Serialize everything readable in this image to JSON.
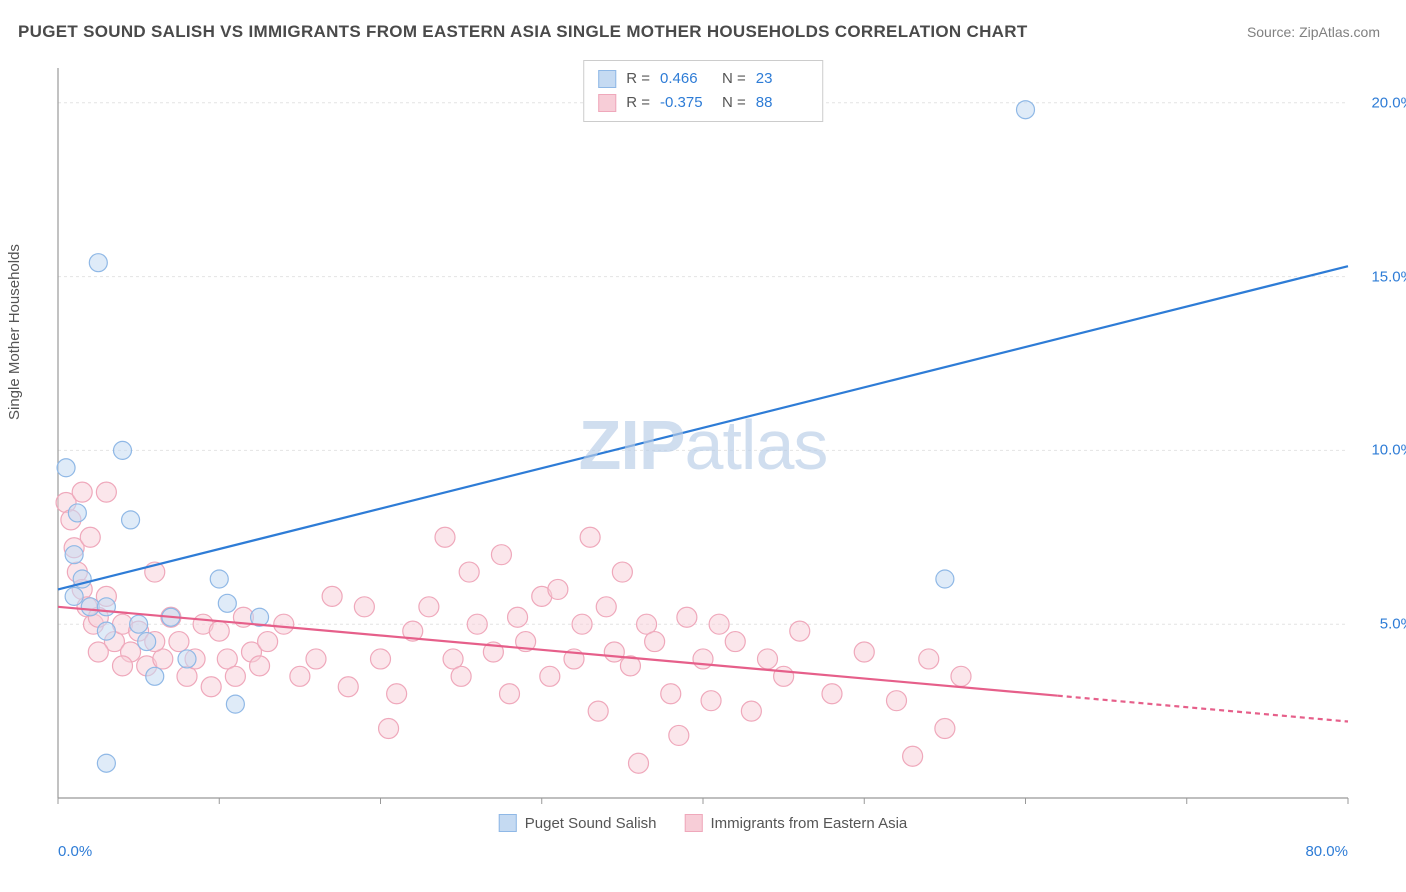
{
  "title": "PUGET SOUND SALISH VS IMMIGRANTS FROM EASTERN ASIA SINGLE MOTHER HOUSEHOLDS CORRELATION CHART",
  "source": "Source: ZipAtlas.com",
  "ylabel": "Single Mother Households",
  "watermark": {
    "bold": "ZIP",
    "light": "atlas"
  },
  "chart": {
    "type": "scatter",
    "background_color": "#ffffff",
    "grid_color": "#e4e4e4",
    "axis_line_color": "#999999",
    "xlim": [
      0,
      80
    ],
    "ylim": [
      0,
      21
    ],
    "xticks": [
      0,
      10,
      20,
      30,
      40,
      50,
      60,
      70,
      80
    ],
    "xtick_labels": {
      "0": "0.0%",
      "80": "80.0%"
    },
    "yticks": [
      5,
      10,
      15,
      20
    ],
    "ytick_labels": {
      "5": "5.0%",
      "10": "10.0%",
      "15": "15.0%",
      "20": "20.0%"
    },
    "label_color": "#2e7cd6",
    "label_fontsize": 15,
    "series": [
      {
        "name": "Puget Sound Salish",
        "color_fill": "#c5daf2",
        "color_stroke": "#8fb8e6",
        "line_color": "#2e7cd6",
        "marker_radius": 9,
        "fill_opacity": 0.55,
        "line_width": 2.2,
        "R": "0.466",
        "N": "23",
        "trend": {
          "x1": 0,
          "y1": 6.0,
          "x2": 80,
          "y2": 15.3
        },
        "trend_solid_to_x": 80,
        "points": [
          [
            0.5,
            9.5
          ],
          [
            1.0,
            7.0
          ],
          [
            1.2,
            8.2
          ],
          [
            1.5,
            6.3
          ],
          [
            2.0,
            5.5
          ],
          [
            2.5,
            15.4
          ],
          [
            3.0,
            4.8
          ],
          [
            3.0,
            5.5
          ],
          [
            3.0,
            1.0
          ],
          [
            4.0,
            10.0
          ],
          [
            4.5,
            8.0
          ],
          [
            5.0,
            5.0
          ],
          [
            5.5,
            4.5
          ],
          [
            6.0,
            3.5
          ],
          [
            7.0,
            5.2
          ],
          [
            8.0,
            4.0
          ],
          [
            10.0,
            6.3
          ],
          [
            10.5,
            5.6
          ],
          [
            11.0,
            2.7
          ],
          [
            12.5,
            5.2
          ],
          [
            55.0,
            6.3
          ],
          [
            60.0,
            19.8
          ],
          [
            1.0,
            5.8
          ]
        ]
      },
      {
        "name": "Immigrants from Eastern Asia",
        "color_fill": "#f7cdd7",
        "color_stroke": "#efa8bb",
        "line_color": "#e65f8a",
        "marker_radius": 10,
        "fill_opacity": 0.5,
        "line_width": 2.2,
        "R": "-0.375",
        "N": "88",
        "trend": {
          "x1": 0,
          "y1": 5.5,
          "x2": 80,
          "y2": 2.2
        },
        "trend_solid_to_x": 62,
        "points": [
          [
            0.5,
            8.5
          ],
          [
            0.8,
            8.0
          ],
          [
            1.0,
            7.2
          ],
          [
            1.2,
            6.5
          ],
          [
            1.5,
            6.0
          ],
          [
            1.8,
            5.5
          ],
          [
            2.0,
            7.5
          ],
          [
            2.2,
            5.0
          ],
          [
            2.5,
            5.2
          ],
          [
            3.0,
            5.8
          ],
          [
            3.5,
            4.5
          ],
          [
            4.0,
            5.0
          ],
          [
            4.5,
            4.2
          ],
          [
            5.0,
            4.8
          ],
          [
            5.5,
            3.8
          ],
          [
            6.0,
            6.5
          ],
          [
            6.5,
            4.0
          ],
          [
            7.0,
            5.2
          ],
          [
            7.5,
            4.5
          ],
          [
            8.0,
            3.5
          ],
          [
            8.5,
            4.0
          ],
          [
            9.0,
            5.0
          ],
          [
            9.5,
            3.2
          ],
          [
            10.0,
            4.8
          ],
          [
            10.5,
            4.0
          ],
          [
            11.0,
            3.5
          ],
          [
            11.5,
            5.2
          ],
          [
            12.0,
            4.2
          ],
          [
            12.5,
            3.8
          ],
          [
            13.0,
            4.5
          ],
          [
            14.0,
            5.0
          ],
          [
            15.0,
            3.5
          ],
          [
            16.0,
            4.0
          ],
          [
            17.0,
            5.8
          ],
          [
            18.0,
            3.2
          ],
          [
            19.0,
            5.5
          ],
          [
            20.0,
            4.0
          ],
          [
            20.5,
            2.0
          ],
          [
            21.0,
            3.0
          ],
          [
            22.0,
            4.8
          ],
          [
            23.0,
            5.5
          ],
          [
            24.0,
            7.5
          ],
          [
            24.5,
            4.0
          ],
          [
            25.0,
            3.5
          ],
          [
            25.5,
            6.5
          ],
          [
            26.0,
            5.0
          ],
          [
            27.0,
            4.2
          ],
          [
            27.5,
            7.0
          ],
          [
            28.0,
            3.0
          ],
          [
            28.5,
            5.2
          ],
          [
            29.0,
            4.5
          ],
          [
            30.0,
            5.8
          ],
          [
            30.5,
            3.5
          ],
          [
            31.0,
            6.0
          ],
          [
            32.0,
            4.0
          ],
          [
            32.5,
            5.0
          ],
          [
            33.0,
            7.5
          ],
          [
            33.5,
            2.5
          ],
          [
            34.0,
            5.5
          ],
          [
            34.5,
            4.2
          ],
          [
            35.0,
            6.5
          ],
          [
            35.5,
            3.8
          ],
          [
            36.0,
            1.0
          ],
          [
            36.5,
            5.0
          ],
          [
            37.0,
            4.5
          ],
          [
            38.0,
            3.0
          ],
          [
            38.5,
            1.8
          ],
          [
            39.0,
            5.2
          ],
          [
            40.0,
            4.0
          ],
          [
            40.5,
            2.8
          ],
          [
            41.0,
            5.0
          ],
          [
            42.0,
            4.5
          ],
          [
            43.0,
            2.5
          ],
          [
            44.0,
            4.0
          ],
          [
            45.0,
            3.5
          ],
          [
            46.0,
            4.8
          ],
          [
            48.0,
            3.0
          ],
          [
            50.0,
            4.2
          ],
          [
            52.0,
            2.8
          ],
          [
            53.0,
            1.2
          ],
          [
            54.0,
            4.0
          ],
          [
            55.0,
            2.0
          ],
          [
            56.0,
            3.5
          ],
          [
            2.5,
            4.2
          ],
          [
            4.0,
            3.8
          ],
          [
            6.0,
            4.5
          ],
          [
            3.0,
            8.8
          ],
          [
            1.5,
            8.8
          ]
        ]
      }
    ]
  },
  "stats_box": {
    "rows": [
      {
        "swatch_fill": "#c5daf2",
        "swatch_stroke": "#8fb8e6",
        "R_label": "R =",
        "R_val": "0.466",
        "N_label": "N =",
        "N_val": "23"
      },
      {
        "swatch_fill": "#f7cdd7",
        "swatch_stroke": "#efa8bb",
        "R_label": "R =",
        "R_val": "-0.375",
        "N_label": "N =",
        "N_val": "88"
      }
    ]
  },
  "legend": [
    {
      "swatch_fill": "#c5daf2",
      "swatch_stroke": "#8fb8e6",
      "label": "Puget Sound Salish"
    },
    {
      "swatch_fill": "#f7cdd7",
      "swatch_stroke": "#efa8bb",
      "label": "Immigrants from Eastern Asia"
    }
  ]
}
